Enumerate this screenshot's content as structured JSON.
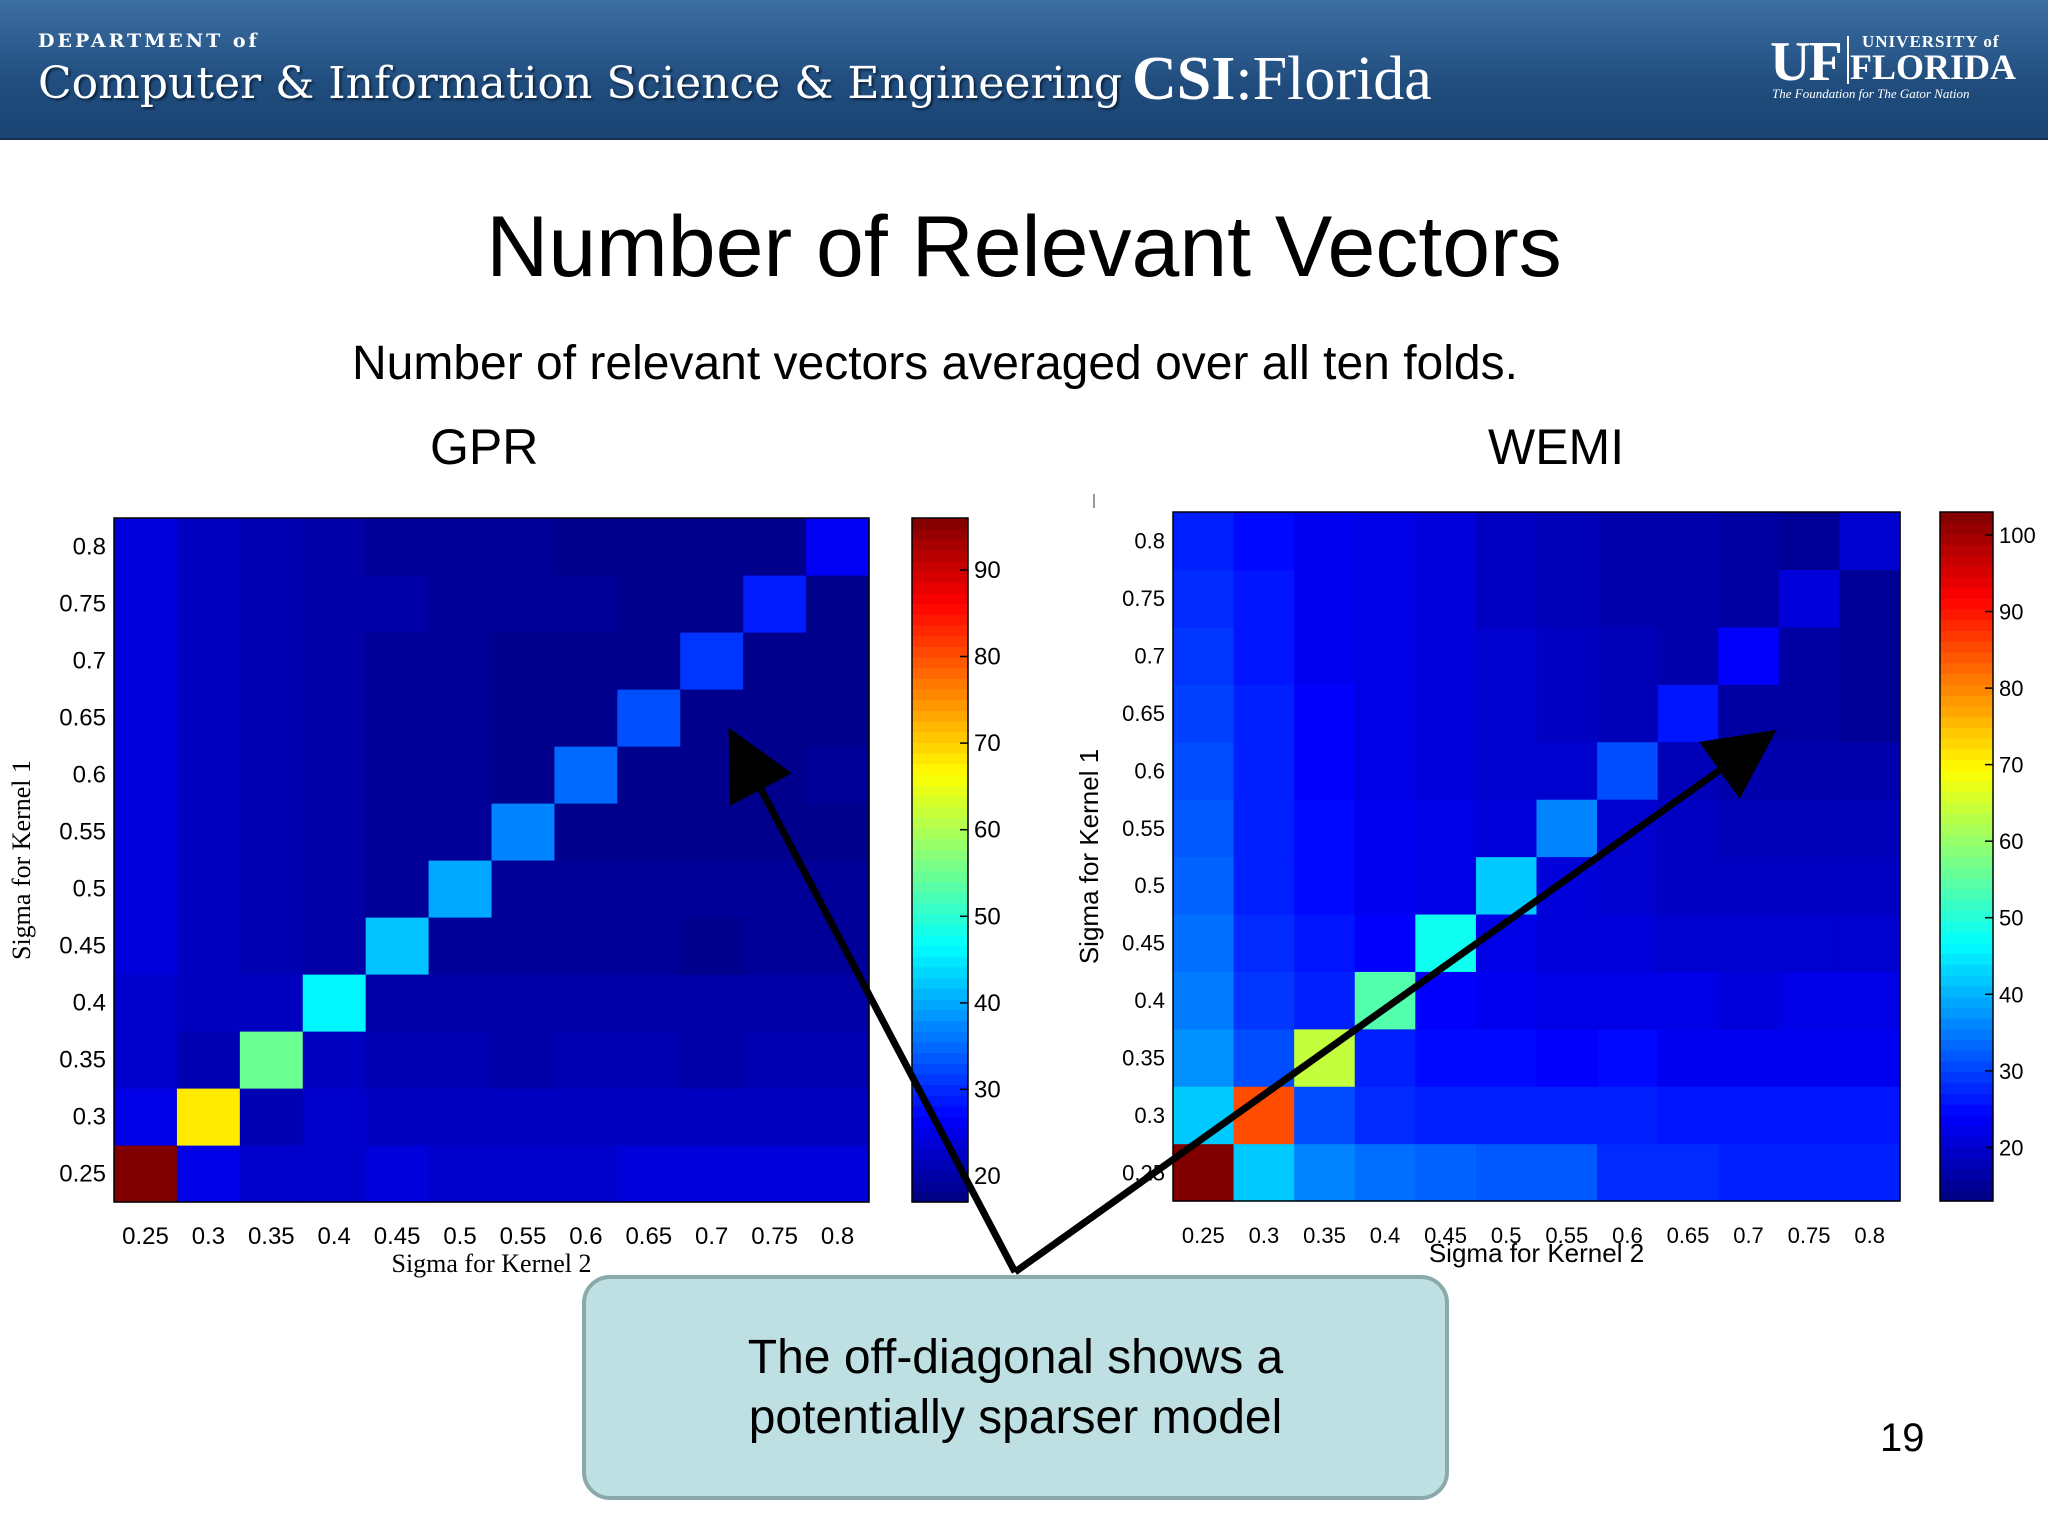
{
  "header": {
    "dept_small": "DEPARTMENT of",
    "dept_big": "Computer & Information Science & Engineering",
    "csi_bold": "CSI",
    "csi_rest": ":Florida",
    "uf_mark": "UF",
    "uf_univ": "UNIVERSITY of",
    "uf_florida": "FLORIDA",
    "uf_tagline": "The Foundation for The Gator Nation"
  },
  "slide": {
    "title": "Number of Relevant Vectors",
    "subtitle": "Number of relevant vectors averaged over all ten folds.",
    "callout_line1": "The off-diagonal shows a",
    "callout_line2": "potentially sparser model",
    "page_number": "19"
  },
  "chart_data": [
    {
      "type": "heatmap",
      "title": "GPR",
      "xlabel": "Sigma for Kernel 2",
      "ylabel": "Sigma for Kernel 1",
      "x": [
        "0.25",
        "0.3",
        "0.35",
        "0.4",
        "0.45",
        "0.5",
        "0.55",
        "0.6",
        "0.65",
        "0.7",
        "0.75",
        "0.8"
      ],
      "y": [
        "0.25",
        "0.3",
        "0.35",
        "0.4",
        "0.45",
        "0.5",
        "0.55",
        "0.6",
        "0.65",
        "0.7",
        "0.75",
        "0.8"
      ],
      "zlim": [
        17,
        96
      ],
      "colorbar_ticks": [
        20,
        30,
        40,
        50,
        60,
        70,
        80,
        90
      ],
      "colormap": "jet",
      "values": [
        [
          96,
          25,
          23,
          23,
          24,
          23,
          23,
          23,
          24,
          24,
          24,
          24
        ],
        [
          25,
          68,
          21,
          23,
          22,
          22,
          22,
          22,
          22,
          22,
          22,
          22
        ],
        [
          23,
          21,
          55,
          22,
          21,
          21,
          20,
          21,
          21,
          20,
          21,
          21
        ],
        [
          23,
          22,
          22,
          46,
          20,
          20,
          20,
          20,
          20,
          20,
          20,
          20
        ],
        [
          24,
          22,
          21,
          20,
          42,
          19,
          19,
          19,
          19,
          18,
          19,
          19
        ],
        [
          24,
          22,
          21,
          20,
          19,
          40,
          19,
          19,
          19,
          19,
          19,
          19
        ],
        [
          24,
          22,
          21,
          20,
          19,
          19,
          37,
          18,
          18,
          18,
          18,
          18
        ],
        [
          24,
          22,
          21,
          20,
          19,
          19,
          18,
          35,
          18,
          18,
          18,
          19
        ],
        [
          24,
          22,
          21,
          20,
          19,
          19,
          18,
          18,
          33,
          18,
          18,
          18
        ],
        [
          24,
          22,
          21,
          20,
          19,
          19,
          18,
          18,
          18,
          31,
          18,
          18
        ],
        [
          24,
          22,
          21,
          20,
          20,
          19,
          19,
          19,
          18,
          18,
          29,
          18
        ],
        [
          24,
          22,
          21,
          20,
          19,
          19,
          19,
          18,
          18,
          18,
          18,
          26
        ]
      ]
    },
    {
      "type": "heatmap",
      "title": "WEMI",
      "xlabel": "Sigma for Kernel 2",
      "ylabel": "Sigma for Kernel 1",
      "x": [
        "0.25",
        "0.3",
        "0.35",
        "0.4",
        "0.45",
        "0.5",
        "0.55",
        "0.6",
        "0.65",
        "0.7",
        "0.75",
        "0.8"
      ],
      "y": [
        "0.25",
        "0.3",
        "0.35",
        "0.4",
        "0.45",
        "0.5",
        "0.55",
        "0.6",
        "0.65",
        "0.7",
        "0.75",
        "0.8"
      ],
      "zlim": [
        13,
        103
      ],
      "colorbar_ticks": [
        20,
        30,
        40,
        50,
        60,
        70,
        80,
        90,
        100
      ],
      "colormap": "jet",
      "values": [
        [
          103,
          42,
          36,
          34,
          33,
          32,
          32,
          28,
          28,
          27,
          27,
          27
        ],
        [
          42,
          85,
          31,
          28,
          27,
          27,
          27,
          27,
          26,
          26,
          26,
          26
        ],
        [
          37,
          31,
          64,
          27,
          25,
          25,
          24,
          25,
          23,
          23,
          23,
          23
        ],
        [
          35,
          29,
          27,
          54,
          24,
          23,
          22,
          22,
          22,
          21,
          22,
          22
        ],
        [
          34,
          28,
          26,
          24,
          48,
          22,
          21,
          21,
          20,
          20,
          20,
          20
        ],
        [
          33,
          27,
          25,
          23,
          22,
          42,
          21,
          20,
          19,
          19,
          19,
          19
        ],
        [
          32,
          27,
          25,
          23,
          22,
          21,
          36,
          20,
          19,
          18,
          18,
          18
        ],
        [
          31,
          27,
          24,
          22,
          21,
          20,
          20,
          31,
          18,
          17,
          17,
          17
        ],
        [
          30,
          27,
          24,
          22,
          21,
          20,
          19,
          18,
          26,
          16,
          16,
          15
        ],
        [
          29,
          26,
          23,
          22,
          21,
          20,
          19,
          18,
          17,
          24,
          16,
          15
        ],
        [
          28,
          26,
          23,
          22,
          21,
          19,
          18,
          17,
          17,
          16,
          21,
          15
        ],
        [
          27,
          25,
          23,
          22,
          21,
          19,
          18,
          17,
          17,
          16,
          15,
          20
        ]
      ]
    }
  ]
}
